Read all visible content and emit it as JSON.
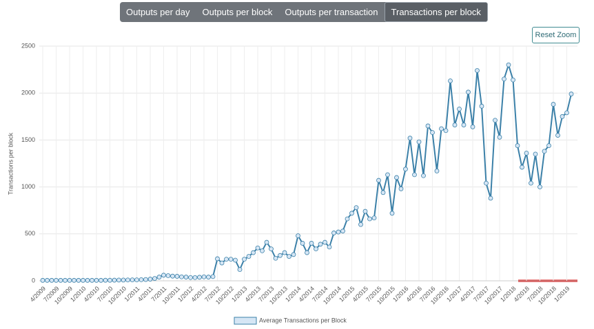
{
  "tabs": [
    {
      "label": "Outputs per day",
      "active": false
    },
    {
      "label": "Outputs per block",
      "active": false
    },
    {
      "label": "Outputs per transaction",
      "active": false
    },
    {
      "label": "Transactions per block",
      "active": true
    }
  ],
  "reset_button": "Reset Zoom",
  "chart_data": {
    "type": "line",
    "y_label": "Transactions per block",
    "categories": [
      "4/2009",
      null,
      null,
      "7/2009",
      null,
      null,
      "10/2009",
      null,
      null,
      "1/2010",
      null,
      null,
      "4/2010",
      null,
      null,
      "7/2010",
      null,
      null,
      "10/2010",
      null,
      null,
      "1/2011",
      null,
      null,
      "4/2011",
      null,
      null,
      "7/2011",
      null,
      null,
      "10/2011",
      null,
      null,
      "1/2012",
      null,
      null,
      "4/2012",
      null,
      null,
      "7/2012",
      null,
      null,
      "10/2012",
      null,
      null,
      "1/2013",
      null,
      null,
      "4/2013",
      null,
      null,
      "7/2013",
      null,
      null,
      "10/2013",
      null,
      null,
      "1/2014",
      null,
      null,
      "4/2014",
      null,
      null,
      "7/2014",
      null,
      null,
      "10/2014",
      null,
      null,
      "1/2015",
      null,
      null,
      "4/2015",
      null,
      null,
      "7/2015",
      null,
      null,
      "10/2015",
      null,
      null,
      "1/2016",
      null,
      null,
      "4/2016",
      null,
      null,
      "7/2016",
      null,
      null,
      "10/2016",
      null,
      null,
      "1/2017",
      null,
      null,
      "4/2017",
      null,
      null,
      "7/2017",
      null,
      null,
      "10/2017",
      null,
      null,
      "1/2018",
      null,
      null,
      "4/2018",
      null,
      null,
      "7/2018",
      null,
      null,
      "10/2018",
      null,
      null,
      "1/2019",
      null
    ],
    "series": [
      {
        "name": "Average Transactions per Block",
        "color": "#3b80a8",
        "marker_color": "#d6e6f5",
        "values": [
          5,
          5,
          5,
          5,
          5,
          5,
          5,
          5,
          5,
          5,
          5,
          5,
          5,
          5,
          6,
          6,
          7,
          8,
          8,
          9,
          10,
          10,
          12,
          14,
          18,
          25,
          40,
          60,
          55,
          50,
          48,
          42,
          40,
          35,
          35,
          38,
          42,
          40,
          45,
          235,
          190,
          230,
          230,
          220,
          120,
          230,
          260,
          300,
          350,
          320,
          410,
          340,
          240,
          270,
          300,
          260,
          280,
          480,
          400,
          300,
          400,
          340,
          390,
          410,
          360,
          510,
          520,
          530,
          660,
          720,
          780,
          600,
          740,
          660,
          670,
          1070,
          940,
          1130,
          720,
          1100,
          980,
          1190,
          1520,
          1130,
          1480,
          1120,
          1650,
          1580,
          1170,
          1620,
          1600,
          2130,
          1660,
          1830,
          1660,
          2010,
          1640,
          2240,
          1860,
          1040,
          880,
          1710,
          1530,
          2150,
          2300,
          2140,
          1440,
          1210,
          1360,
          1040,
          1350,
          1000,
          1380,
          1440,
          1880,
          1550,
          1750,
          1790,
          1990
        ]
      }
    ],
    "ylim": [
      0,
      2500
    ],
    "yticks": [
      0,
      500,
      1000,
      1500,
      2000,
      2500
    ],
    "grid": true,
    "legend": "bottom"
  }
}
